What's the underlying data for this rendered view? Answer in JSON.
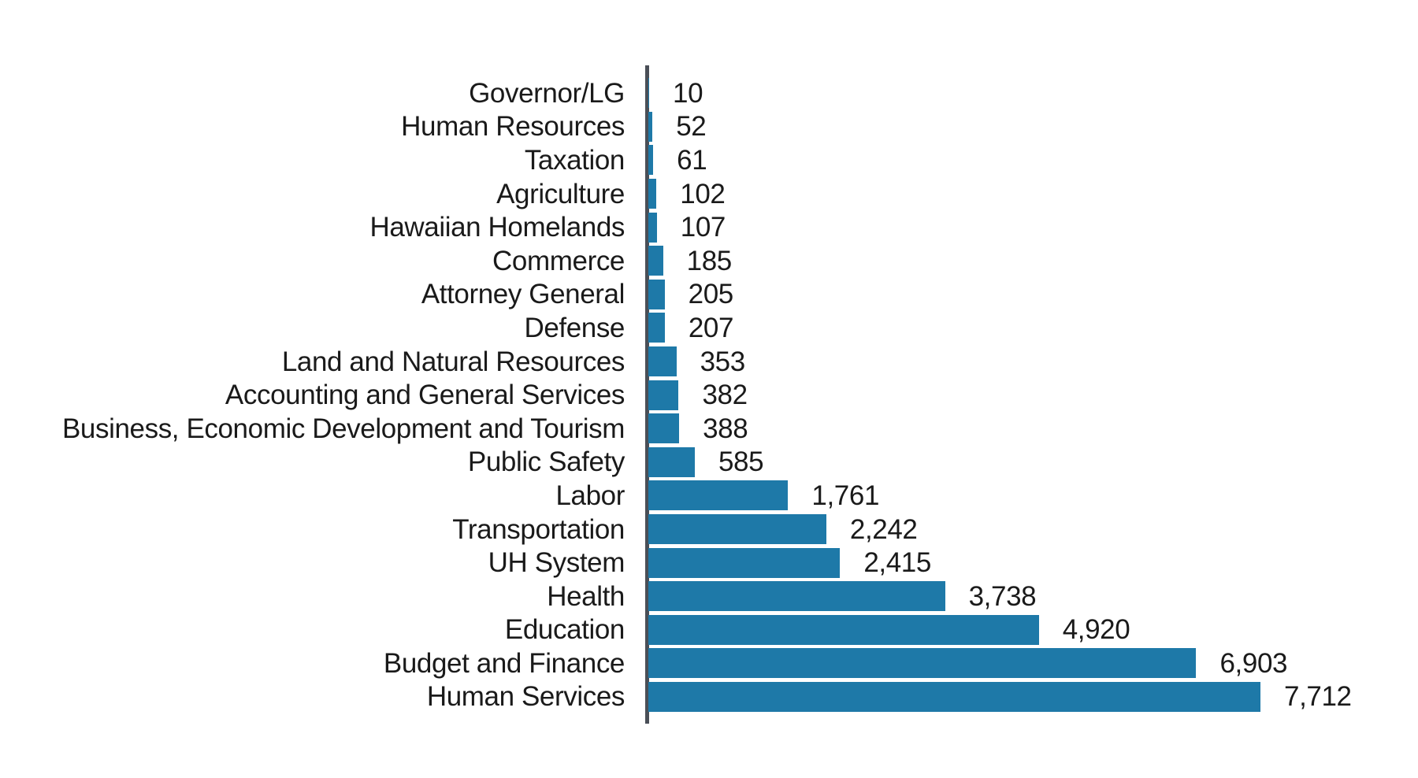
{
  "chart_data": {
    "type": "bar",
    "orientation": "horizontal",
    "title": "",
    "xlabel": "",
    "ylabel": "",
    "xlim": [
      0,
      8000
    ],
    "grid": false,
    "legend": false,
    "bar_color": "#1e79a8",
    "axis_color": "#4a4f57",
    "text_color": "#1a1a1a",
    "categories": [
      "Governor/LG",
      "Human Resources",
      "Taxation",
      "Agriculture",
      "Hawaiian Homelands",
      "Commerce",
      "Attorney General",
      "Defense",
      "Land and Natural Resources",
      "Accounting and General Services",
      "Business, Economic Development and Tourism",
      "Public Safety",
      "Labor",
      "Transportation",
      "UH System",
      "Health",
      "Education",
      "Budget and Finance",
      "Human Services"
    ],
    "values": [
      10,
      52,
      61,
      102,
      107,
      185,
      205,
      207,
      353,
      382,
      388,
      585,
      1761,
      2242,
      2415,
      3738,
      4920,
      6903,
      7712
    ],
    "value_labels": [
      "10",
      "52",
      "61",
      "102",
      "107",
      "185",
      "205",
      "207",
      "353",
      "382",
      "388",
      "585",
      "1,761",
      "2,242",
      "2,415",
      "3,738",
      "4,920",
      "6,903",
      "7,712"
    ]
  }
}
